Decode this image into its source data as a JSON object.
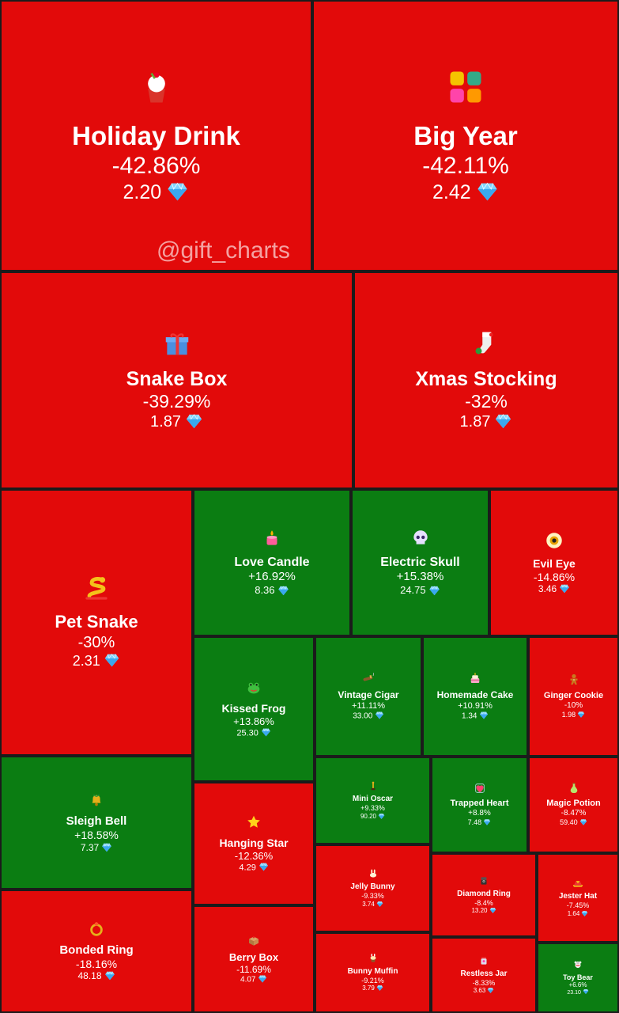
{
  "watermark": "@gift_charts",
  "currency_icon": "diamond-icon",
  "colors": {
    "negative": "#e20a0a",
    "positive": "#0b7d12",
    "border": "#1b1b1b",
    "text": "#ffffff"
  },
  "chart_data": {
    "type": "treemap",
    "title": "",
    "items": [
      {
        "name": "Holiday Drink",
        "change": "-42.86%",
        "price": "2.20",
        "icon": "cupcake-icon"
      },
      {
        "name": "Big Year",
        "change": "-42.11%",
        "price": "2.42",
        "icon": "year-2025-icon"
      },
      {
        "name": "Snake Box",
        "change": "-39.29%",
        "price": "1.87",
        "icon": "gift-box-icon"
      },
      {
        "name": "Xmas Stocking",
        "change": "-32%",
        "price": "1.87",
        "icon": "stocking-icon"
      },
      {
        "name": "Pet Snake",
        "change": "-30%",
        "price": "2.31",
        "icon": "snake-icon"
      },
      {
        "name": "Love Candle",
        "change": "+16.92%",
        "price": "8.36",
        "icon": "candle-icon"
      },
      {
        "name": "Electric Skull",
        "change": "+15.38%",
        "price": "24.75",
        "icon": "skull-icon"
      },
      {
        "name": "Evil Eye",
        "change": "-14.86%",
        "price": "3.46",
        "icon": "eye-icon"
      },
      {
        "name": "Kissed Frog",
        "change": "+13.86%",
        "price": "25.30",
        "icon": "frog-icon"
      },
      {
        "name": "Vintage Cigar",
        "change": "+11.11%",
        "price": "33.00",
        "icon": "cigar-icon"
      },
      {
        "name": "Homemade Cake",
        "change": "+10.91%",
        "price": "1.34",
        "icon": "cake-icon"
      },
      {
        "name": "Ginger Cookie",
        "change": "-10%",
        "price": "1.98",
        "icon": "gingerbread-icon"
      },
      {
        "name": "Sleigh Bell",
        "change": "+18.58%",
        "price": "7.37",
        "icon": "bell-icon"
      },
      {
        "name": "Hanging Star",
        "change": "-12.36%",
        "price": "4.29",
        "icon": "star-icon"
      },
      {
        "name": "Mini Oscar",
        "change": "+9.33%",
        "price": "90.20",
        "icon": "trophy-icon"
      },
      {
        "name": "Trapped Heart",
        "change": "+8.8%",
        "price": "7.48",
        "icon": "heart-icon"
      },
      {
        "name": "Magic Potion",
        "change": "-8.47%",
        "price": "59.40",
        "icon": "potion-icon"
      },
      {
        "name": "Jelly Bunny",
        "change": "-9.33%",
        "price": "3.74",
        "icon": "bunny-icon"
      },
      {
        "name": "Diamond Ring",
        "change": "-8.4%",
        "price": "13.20",
        "icon": "ring-box-icon"
      },
      {
        "name": "Jester Hat",
        "change": "-7.45%",
        "price": "1.64",
        "icon": "jester-hat-icon"
      },
      {
        "name": "Bonded Ring",
        "change": "-18.16%",
        "price": "48.18",
        "icon": "ring-icon"
      },
      {
        "name": "Berry Box",
        "change": "-11.69%",
        "price": "4.07",
        "icon": "berry-box-icon"
      },
      {
        "name": "Bunny Muffin",
        "change": "-9.21%",
        "price": "3.79",
        "icon": "muffin-icon"
      },
      {
        "name": "Restless Jar",
        "change": "-8.33%",
        "price": "3.63",
        "icon": "jar-icon"
      },
      {
        "name": "Toy Bear",
        "change": "+6.6%",
        "price": "23.10",
        "icon": "teddy-bear-icon"
      }
    ]
  }
}
